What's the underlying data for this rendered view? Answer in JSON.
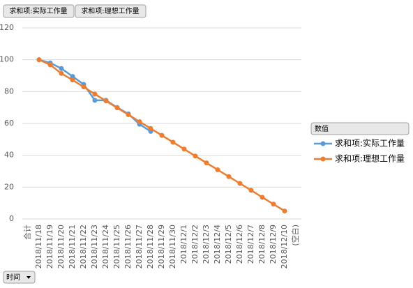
{
  "filters": [
    "求和项:实际工作量",
    "求和项:理想工作量"
  ],
  "axis_field": "时间",
  "chart_data": {
    "type": "line",
    "legend_title": "数值",
    "categories": [
      "合计",
      "2018/11/18",
      "2018/11/19",
      "2018/11/20",
      "2018/11/21",
      "2018/11/22",
      "2018/11/23",
      "2018/11/24",
      "2018/11/25",
      "2018/11/26",
      "2018/11/27",
      "2018/11/28",
      "2018/11/29",
      "2018/11/30",
      "2018/12/1",
      "2018/12/2",
      "2018/12/3",
      "2018/12/4",
      "2018/12/5",
      "2018/12/6",
      "2018/12/7",
      "2018/12/8",
      "2018/12/9",
      "2018/12/10",
      "(空白)"
    ],
    "series": [
      {
        "name": "求和项:实际工作量",
        "color": "#5b9bd5",
        "values": [
          null,
          100,
          98,
          94.5,
          89.5,
          84.5,
          74.5,
          74.5,
          70,
          66,
          59.5,
          55,
          null,
          null,
          null,
          null,
          null,
          null,
          null,
          null,
          null,
          null,
          null,
          null,
          null
        ]
      },
      {
        "name": "求和项:理想工作量",
        "color": "#ed7d31",
        "values": [
          null,
          100,
          96.8,
          91.4,
          87.3,
          82.9,
          78.4,
          74.1,
          69.8,
          65.5,
          61.1,
          56.8,
          52.5,
          48.2,
          43.9,
          39.5,
          35.2,
          30.9,
          26.6,
          22.3,
          18,
          13.6,
          9.3,
          5,
          null
        ]
      }
    ],
    "ylim": [
      0,
      120
    ],
    "yticks": [
      0,
      20,
      40,
      60,
      80,
      100,
      120
    ],
    "grid": true
  }
}
